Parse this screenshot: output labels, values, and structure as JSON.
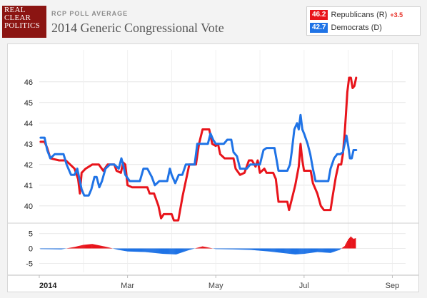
{
  "header": {
    "logo_lines": [
      "REAL",
      "CLEAR",
      "POLITICS"
    ],
    "kicker": "RCP POLL AVERAGE",
    "title": "2014 Generic Congressional Vote"
  },
  "legend": {
    "items": [
      {
        "value": "46.2",
        "name": "Republicans (R)",
        "spread": "+3.5",
        "color": "#e8141b"
      },
      {
        "value": "42.7",
        "name": "Democrats (D)",
        "spread": "",
        "color": "#1f73e6"
      }
    ]
  },
  "chart_data": {
    "type": "line",
    "title": "2014 Generic Congressional Vote",
    "x_labels": [
      "2014",
      "Mar",
      "May",
      "Jul",
      "Sep"
    ],
    "x_label_index": [
      0.5,
      2.0,
      4.0,
      6.0,
      8.0
    ],
    "xlim": [
      0,
      8.3
    ],
    "ylim": [
      39.2,
      47.2
    ],
    "yticks": [
      40,
      41,
      42,
      43,
      44,
      45,
      46
    ],
    "spread_yticks": [
      5,
      0,
      -5
    ],
    "spread_ylim": [
      -8,
      8
    ],
    "grid": true,
    "series": [
      {
        "name": "Republicans (R)",
        "color": "#e8141b",
        "points": [
          [
            0.03,
            43.1
          ],
          [
            0.12,
            43.1
          ],
          [
            0.18,
            42.8
          ],
          [
            0.25,
            42.3
          ],
          [
            0.45,
            42.2
          ],
          [
            0.6,
            42.2
          ],
          [
            0.7,
            42.0
          ],
          [
            0.8,
            41.8
          ],
          [
            0.88,
            41.3
          ],
          [
            0.92,
            40.6
          ],
          [
            0.96,
            41.6
          ],
          [
            1.05,
            41.8
          ],
          [
            1.2,
            42.0
          ],
          [
            1.35,
            42.0
          ],
          [
            1.45,
            41.7
          ],
          [
            1.55,
            42.0
          ],
          [
            1.7,
            42.0
          ],
          [
            1.75,
            41.7
          ],
          [
            1.85,
            41.6
          ],
          [
            1.9,
            42.1
          ],
          [
            1.95,
            42.0
          ],
          [
            2.0,
            41.0
          ],
          [
            2.1,
            40.9
          ],
          [
            2.25,
            40.9
          ],
          [
            2.35,
            40.9
          ],
          [
            2.45,
            40.9
          ],
          [
            2.5,
            40.6
          ],
          [
            2.6,
            40.6
          ],
          [
            2.7,
            40.0
          ],
          [
            2.76,
            39.4
          ],
          [
            2.82,
            39.6
          ],
          [
            3.0,
            39.6
          ],
          [
            3.05,
            39.3
          ],
          [
            3.15,
            39.3
          ],
          [
            3.25,
            40.5
          ],
          [
            3.4,
            42.0
          ],
          [
            3.55,
            42.0
          ],
          [
            3.62,
            43.0
          ],
          [
            3.7,
            43.7
          ],
          [
            3.85,
            43.7
          ],
          [
            3.92,
            43.0
          ],
          [
            4.0,
            42.9
          ],
          [
            4.05,
            43.0
          ],
          [
            4.1,
            42.5
          ],
          [
            4.2,
            42.3
          ],
          [
            4.3,
            42.3
          ],
          [
            4.4,
            42.3
          ],
          [
            4.45,
            41.8
          ],
          [
            4.55,
            41.5
          ],
          [
            4.65,
            41.6
          ],
          [
            4.75,
            42.2
          ],
          [
            4.82,
            42.2
          ],
          [
            4.9,
            41.9
          ],
          [
            4.95,
            42.2
          ],
          [
            5.0,
            41.6
          ],
          [
            5.1,
            41.8
          ],
          [
            5.15,
            41.6
          ],
          [
            5.3,
            41.6
          ],
          [
            5.36,
            41.3
          ],
          [
            5.42,
            40.2
          ],
          [
            5.55,
            40.2
          ],
          [
            5.62,
            40.2
          ],
          [
            5.66,
            39.8
          ],
          [
            5.72,
            40.3
          ],
          [
            5.8,
            41.0
          ],
          [
            5.88,
            41.9
          ],
          [
            5.92,
            43.0
          ],
          [
            5.96,
            42.2
          ],
          [
            6.0,
            41.7
          ],
          [
            6.05,
            41.7
          ],
          [
            6.15,
            41.7
          ],
          [
            6.2,
            41.1
          ],
          [
            6.3,
            40.6
          ],
          [
            6.38,
            40.0
          ],
          [
            6.45,
            39.8
          ],
          [
            6.6,
            39.8
          ],
          [
            6.65,
            40.5
          ],
          [
            6.72,
            41.4
          ],
          [
            6.78,
            42.0
          ],
          [
            6.84,
            42.0
          ],
          [
            6.88,
            42.5
          ],
          [
            6.92,
            43.5
          ],
          [
            6.95,
            44.5
          ],
          [
            6.98,
            45.5
          ],
          [
            7.02,
            46.2
          ],
          [
            7.06,
            46.2
          ],
          [
            7.1,
            45.7
          ],
          [
            7.14,
            45.8
          ],
          [
            7.18,
            46.2
          ]
        ]
      },
      {
        "name": "Democrats (D)",
        "color": "#1f73e6",
        "points": [
          [
            0.03,
            43.3
          ],
          [
            0.12,
            43.3
          ],
          [
            0.18,
            42.7
          ],
          [
            0.25,
            42.3
          ],
          [
            0.35,
            42.5
          ],
          [
            0.45,
            42.5
          ],
          [
            0.55,
            42.5
          ],
          [
            0.62,
            42.0
          ],
          [
            0.72,
            41.5
          ],
          [
            0.8,
            41.5
          ],
          [
            0.86,
            41.8
          ],
          [
            0.92,
            41.2
          ],
          [
            0.96,
            40.8
          ],
          [
            1.02,
            40.5
          ],
          [
            1.12,
            40.5
          ],
          [
            1.18,
            40.8
          ],
          [
            1.25,
            41.4
          ],
          [
            1.3,
            41.4
          ],
          [
            1.36,
            40.9
          ],
          [
            1.42,
            41.2
          ],
          [
            1.5,
            41.8
          ],
          [
            1.6,
            42.0
          ],
          [
            1.7,
            42.0
          ],
          [
            1.8,
            41.8
          ],
          [
            1.86,
            42.3
          ],
          [
            1.9,
            42.0
          ],
          [
            1.95,
            41.5
          ],
          [
            2.05,
            41.2
          ],
          [
            2.18,
            41.2
          ],
          [
            2.28,
            41.2
          ],
          [
            2.36,
            41.8
          ],
          [
            2.45,
            41.8
          ],
          [
            2.55,
            41.4
          ],
          [
            2.62,
            41.0
          ],
          [
            2.72,
            41.2
          ],
          [
            2.8,
            41.2
          ],
          [
            2.9,
            41.2
          ],
          [
            2.96,
            41.8
          ],
          [
            3.0,
            41.5
          ],
          [
            3.08,
            41.1
          ],
          [
            3.16,
            41.5
          ],
          [
            3.24,
            41.5
          ],
          [
            3.32,
            42.0
          ],
          [
            3.42,
            42.0
          ],
          [
            3.52,
            42.0
          ],
          [
            3.58,
            43.0
          ],
          [
            3.64,
            43.0
          ],
          [
            3.72,
            43.0
          ],
          [
            3.82,
            43.0
          ],
          [
            3.88,
            43.5
          ],
          [
            3.94,
            43.2
          ],
          [
            4.0,
            43.0
          ],
          [
            4.08,
            43.0
          ],
          [
            4.18,
            43.0
          ],
          [
            4.26,
            43.2
          ],
          [
            4.35,
            43.2
          ],
          [
            4.4,
            42.6
          ],
          [
            4.48,
            42.4
          ],
          [
            4.55,
            41.8
          ],
          [
            4.62,
            41.8
          ],
          [
            4.7,
            41.8
          ],
          [
            4.78,
            42.0
          ],
          [
            4.85,
            42.0
          ],
          [
            4.92,
            42.0
          ],
          [
            5.0,
            42.0
          ],
          [
            5.08,
            42.7
          ],
          [
            5.15,
            42.8
          ],
          [
            5.25,
            42.8
          ],
          [
            5.33,
            42.8
          ],
          [
            5.38,
            42.2
          ],
          [
            5.42,
            41.7
          ],
          [
            5.52,
            41.7
          ],
          [
            5.62,
            41.7
          ],
          [
            5.68,
            42.0
          ],
          [
            5.72,
            42.6
          ],
          [
            5.78,
            43.7
          ],
          [
            5.84,
            44.0
          ],
          [
            5.88,
            43.7
          ],
          [
            5.92,
            44.4
          ],
          [
            5.96,
            43.7
          ],
          [
            6.0,
            43.5
          ],
          [
            6.08,
            43.0
          ],
          [
            6.14,
            42.5
          ],
          [
            6.2,
            41.8
          ],
          [
            6.26,
            41.2
          ],
          [
            6.35,
            41.2
          ],
          [
            6.45,
            41.2
          ],
          [
            6.55,
            41.2
          ],
          [
            6.6,
            41.8
          ],
          [
            6.68,
            42.3
          ],
          [
            6.75,
            42.5
          ],
          [
            6.82,
            42.5
          ],
          [
            6.88,
            42.6
          ],
          [
            6.92,
            43.0
          ],
          [
            6.96,
            43.4
          ],
          [
            7.0,
            42.9
          ],
          [
            7.04,
            42.3
          ],
          [
            7.08,
            42.3
          ],
          [
            7.12,
            42.7
          ],
          [
            7.18,
            42.7
          ]
        ]
      }
    ],
    "spread": {
      "name": "Spread",
      "points": [
        [
          0.03,
          -0.2
        ],
        [
          0.5,
          -0.3
        ],
        [
          0.8,
          0.5
        ],
        [
          1.0,
          1.2
        ],
        [
          1.2,
          1.5
        ],
        [
          1.5,
          0.6
        ],
        [
          1.8,
          -0.5
        ],
        [
          2.0,
          -1.0
        ],
        [
          2.4,
          -1.2
        ],
        [
          2.8,
          -1.8
        ],
        [
          3.1,
          -2.0
        ],
        [
          3.4,
          -0.5
        ],
        [
          3.7,
          0.7
        ],
        [
          4.0,
          -0.2
        ],
        [
          4.4,
          -0.3
        ],
        [
          4.8,
          -0.5
        ],
        [
          5.2,
          -1.0
        ],
        [
          5.5,
          -1.5
        ],
        [
          5.8,
          -2.0
        ],
        [
          6.0,
          -1.8
        ],
        [
          6.3,
          -1.2
        ],
        [
          6.6,
          -1.5
        ],
        [
          6.8,
          -0.5
        ],
        [
          6.92,
          0.8
        ],
        [
          7.0,
          3.0
        ],
        [
          7.06,
          4.0
        ],
        [
          7.12,
          3.2
        ],
        [
          7.18,
          3.5
        ]
      ]
    }
  }
}
